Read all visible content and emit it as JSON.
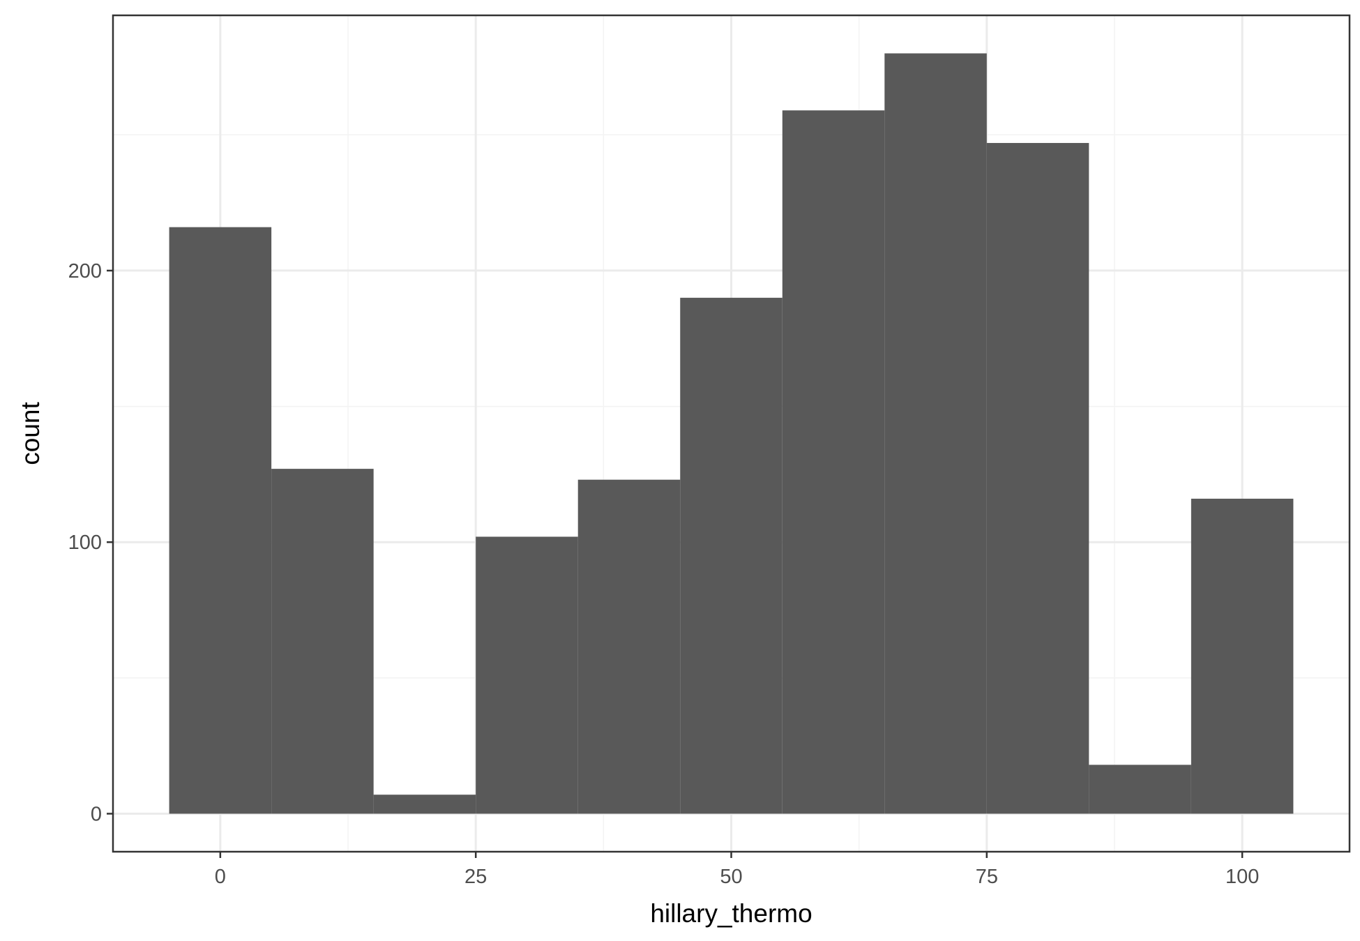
{
  "chart_data": {
    "type": "bar",
    "subtype": "histogram",
    "title": "",
    "xlabel": "hillary_thermo",
    "ylabel": "count",
    "bins": [
      {
        "x0": -5,
        "x1": 5,
        "count": 216
      },
      {
        "x0": 5,
        "x1": 15,
        "count": 127
      },
      {
        "x0": 15,
        "x1": 25,
        "count": 7
      },
      {
        "x0": 25,
        "x1": 35,
        "count": 102
      },
      {
        "x0": 35,
        "x1": 45,
        "count": 123
      },
      {
        "x0": 45,
        "x1": 55,
        "count": 190
      },
      {
        "x0": 55,
        "x1": 65,
        "count": 259
      },
      {
        "x0": 65,
        "x1": 75,
        "count": 280
      },
      {
        "x0": 75,
        "x1": 85,
        "count": 247
      },
      {
        "x0": 85,
        "x1": 95,
        "count": 18
      },
      {
        "x0": 95,
        "x1": 105,
        "count": 116
      }
    ],
    "xlim": [
      -10.5,
      110.5
    ],
    "ylim": [
      -14,
      294
    ],
    "x_ticks": [
      0,
      25,
      50,
      75,
      100
    ],
    "x_tick_labels": [
      "0",
      "25",
      "50",
      "75",
      "100"
    ],
    "x_minor_ticks": [
      12.5,
      37.5,
      62.5,
      87.5
    ],
    "y_ticks": [
      0,
      100,
      200
    ],
    "y_tick_labels": [
      "0",
      "100",
      "200"
    ],
    "y_minor_ticks": [
      50,
      150,
      250
    ],
    "grid": true,
    "legend": "none",
    "colors": {
      "bar_fill": "#595959",
      "grid_major": "#ebebeb",
      "grid_minor": "#f3f3f3",
      "panel_border": "#333333",
      "tick_text": "#4d4d4d",
      "axis_title": "#000000",
      "background": "#ffffff"
    }
  }
}
